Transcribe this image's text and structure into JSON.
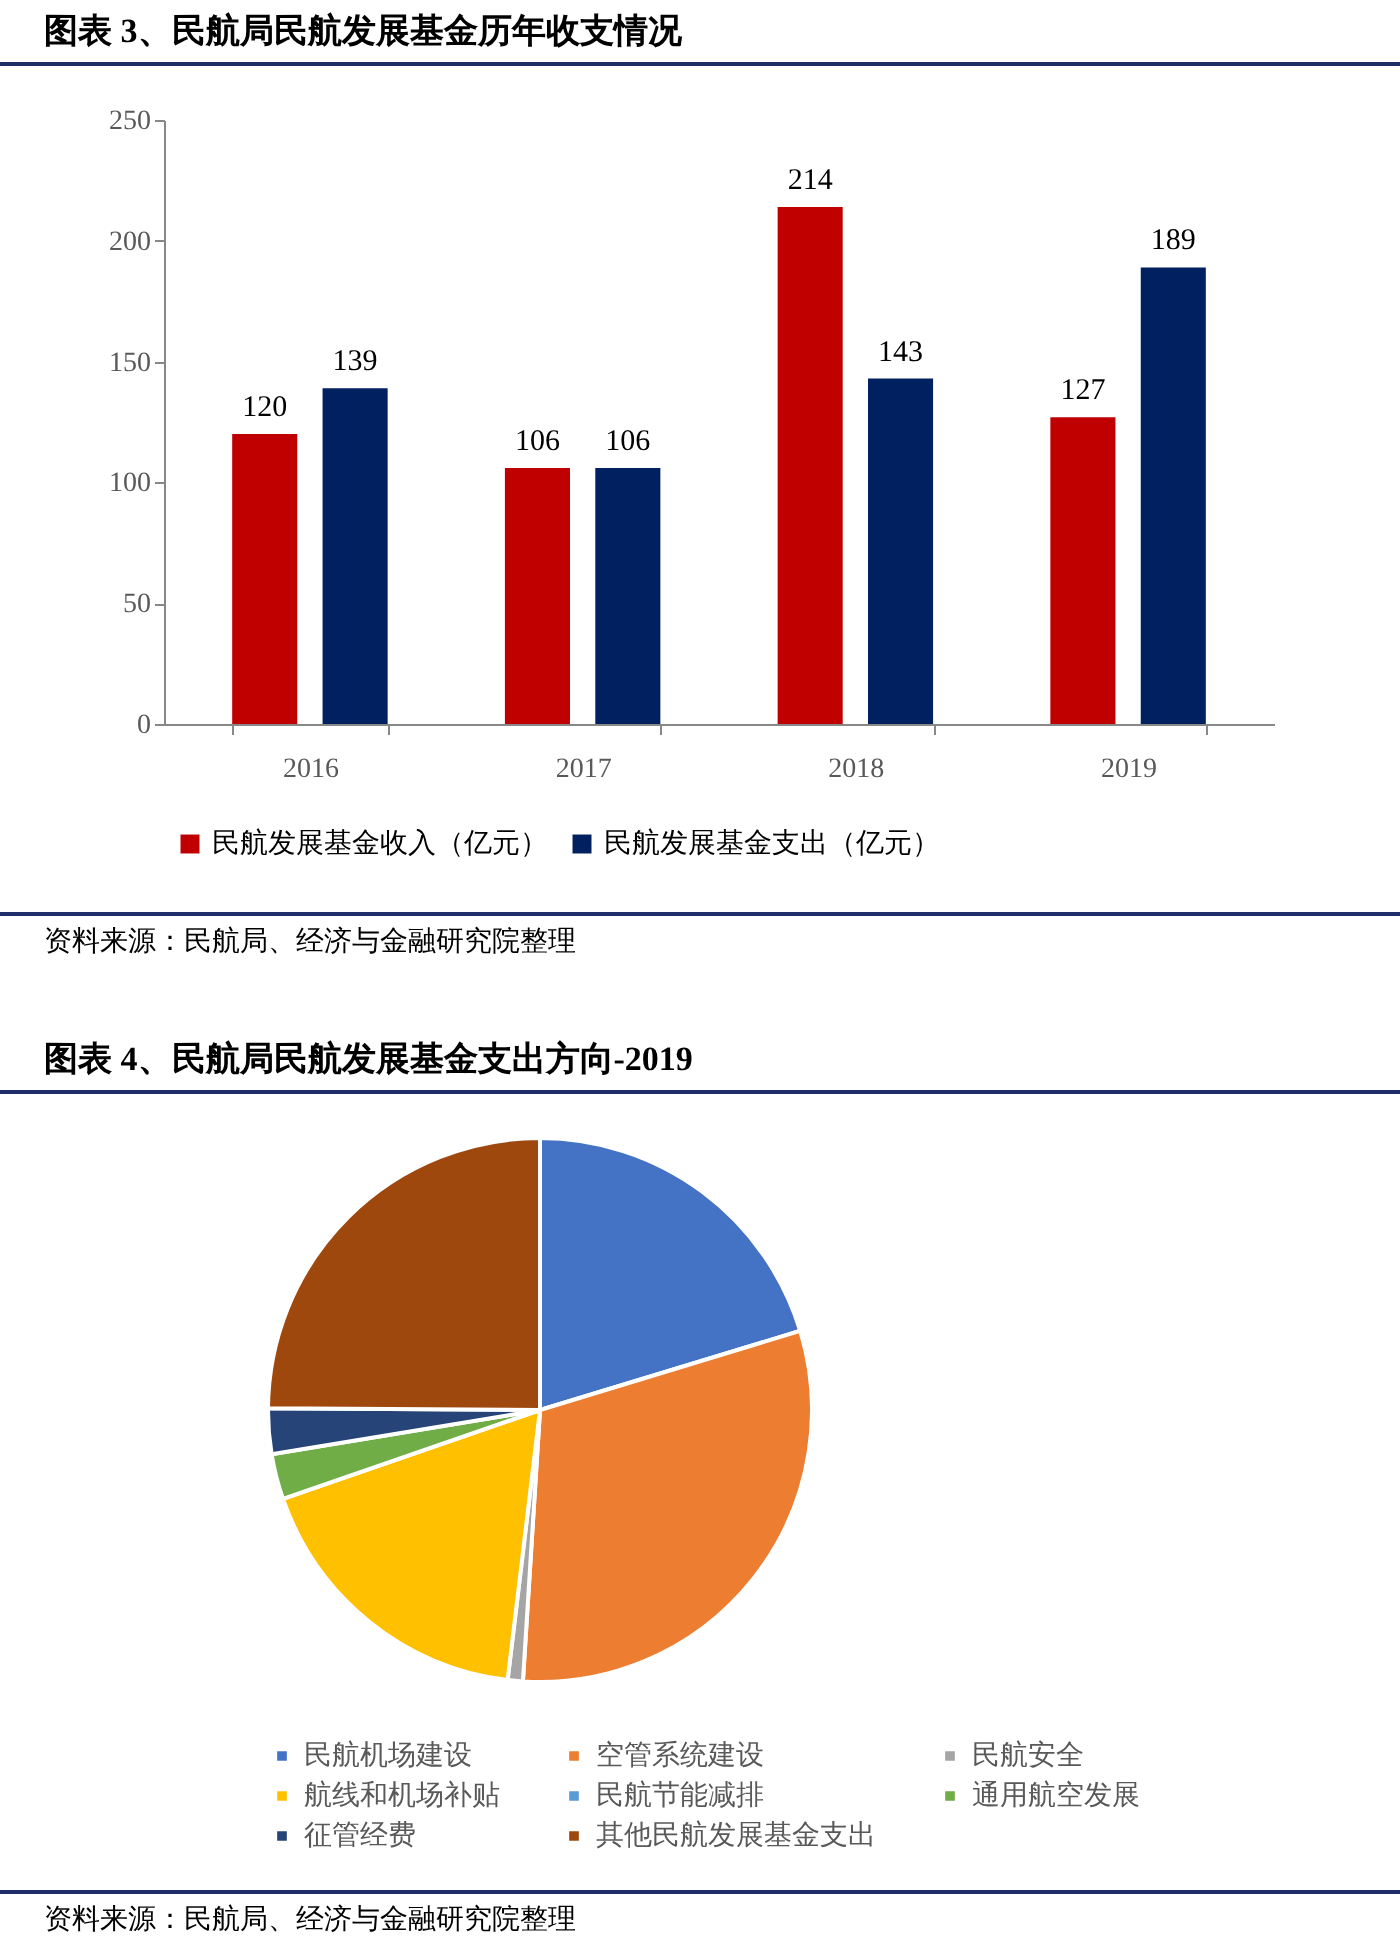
{
  "chart_data": [
    {
      "type": "bar",
      "title": "图表 3、民航局民航发展基金历年收支情况",
      "categories": [
        "2016",
        "2017",
        "2018",
        "2019"
      ],
      "series": [
        {
          "name": "民航发展基金收入（亿元）",
          "color": "#c00000",
          "values": [
            120,
            106,
            214,
            127
          ]
        },
        {
          "name": "民航发展基金支出（亿元）",
          "color": "#002060",
          "values": [
            139,
            106,
            143,
            189
          ]
        }
      ],
      "ylim": [
        0,
        250
      ],
      "yticks": [
        0,
        50,
        100,
        150,
        200,
        250
      ],
      "grid": false,
      "legend": "bottom",
      "data_labels": true,
      "annotations": [
        "资料来源：民航局、经济与金融研究院整理"
      ]
    },
    {
      "type": "pie",
      "title": "图表 4、民航局民航发展基金支出方向-2019",
      "categories": [
        "民航机场建设",
        "空管系统建设",
        "民航安全",
        "航线和机场补贴",
        "民航节能减排",
        "通用航空发展",
        "征管经费",
        "其他民航发展基金支出"
      ],
      "values": [
        20.3,
        30.7,
        0.9,
        17.8,
        null,
        2.7,
        2.7,
        24.9
      ],
      "colors": [
        "#4472c4",
        "#ed7d31",
        "#a5a5a5",
        "#ffc000",
        "#5b9bd5",
        "#70ad47",
        "#264478",
        "#9e480e"
      ],
      "legend": "bottom",
      "annotations": [
        "资料来源：民航局、经济与金融研究院整理"
      ]
    }
  ]
}
